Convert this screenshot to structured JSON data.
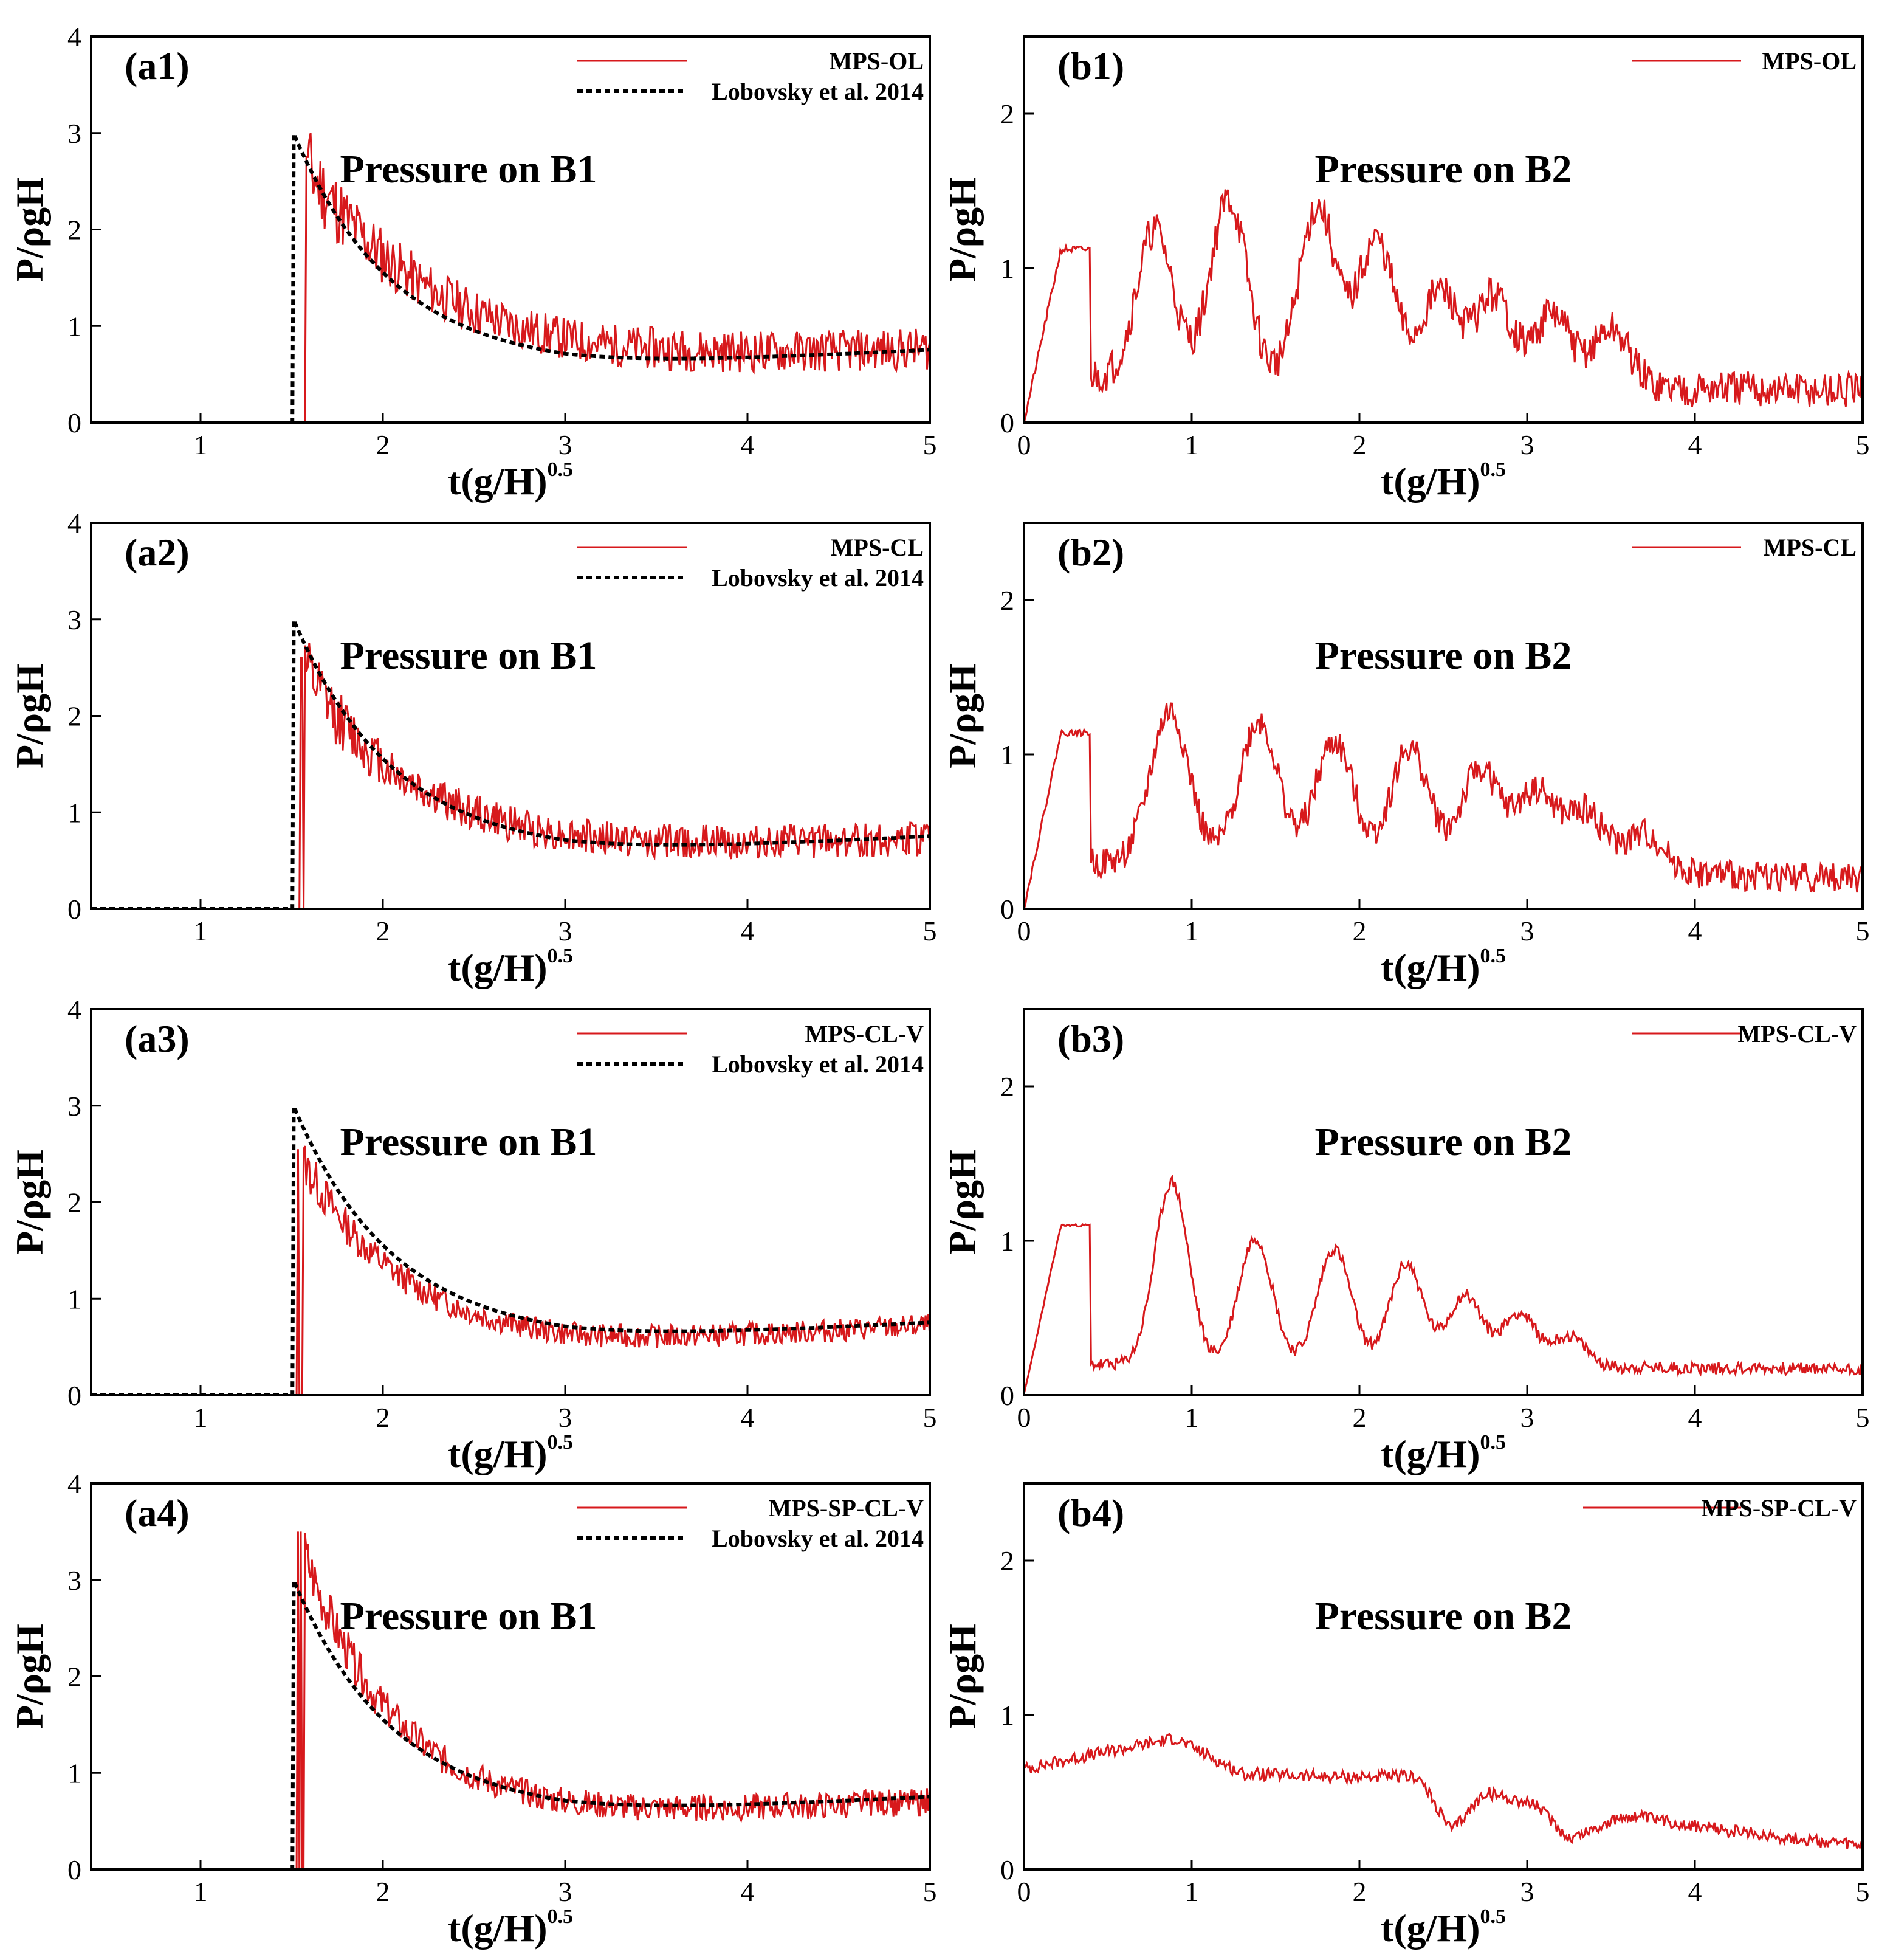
{
  "colors": {
    "sim": "#d7191c",
    "exp": "#000000",
    "axis": "#000000"
  },
  "chart_data": [
    {
      "id": "a1",
      "type": "line",
      "panel_label": "(a1)",
      "annotation": "Pressure on B1",
      "xlabel_main": "t(g/H)",
      "xlabel_sup": "0.5",
      "ylabel": "P/ρgH",
      "xlim": [
        0.4,
        5
      ],
      "ylim": [
        0,
        4
      ],
      "xticks": [
        1,
        2,
        3,
        4,
        5
      ],
      "yticks": [
        0,
        1,
        2,
        3,
        4
      ],
      "series": [
        {
          "name": "MPS-OL",
          "kind": "sim",
          "impact": 1.55,
          "peak": 2.75,
          "decay": 0.7,
          "base_start": 0.6,
          "base_end": 0.75,
          "noise": 0.22,
          "seed": 11
        },
        {
          "name": "Lobovsky et al. 2014",
          "kind": "exp",
          "impact": 1.51,
          "peak": 3.0,
          "decay": 0.55,
          "base_start": 0.55,
          "base_end": 0.75
        }
      ]
    },
    {
      "id": "b1",
      "type": "line",
      "panel_label": "(b1)",
      "annotation": "Pressure on B2",
      "xlabel_main": "t(g/H)",
      "xlabel_sup": "0.5",
      "ylabel": "P/ρgH",
      "xlim": [
        0,
        5
      ],
      "ylim": [
        0,
        2.5
      ],
      "xticks": [
        0,
        1,
        2,
        3,
        4,
        5
      ],
      "yticks": [
        0,
        1,
        2
      ],
      "series": [
        {
          "name": "MPS-OL",
          "kind": "sim",
          "first_peak": 1.12,
          "peak_times": [
            0.78,
            1.22,
            1.75,
            2.1,
            2.48,
            2.8,
            3.15,
            3.5
          ],
          "peak_heights": [
            1.25,
            1.45,
            1.4,
            1.18,
            0.85,
            0.82,
            0.7,
            0.6
          ],
          "width": 0.14,
          "base": 0.3,
          "tail": 0.2,
          "noise": 0.12,
          "seed": 21
        }
      ]
    },
    {
      "id": "a2",
      "type": "line",
      "panel_label": "(a2)",
      "annotation": "Pressure on B1",
      "xlabel_main": "t(g/H)",
      "xlabel_sup": "0.5",
      "ylabel": "P/ρgH",
      "xlim": [
        0.4,
        5
      ],
      "ylim": [
        0,
        4
      ],
      "xticks": [
        1,
        2,
        3,
        4,
        5
      ],
      "yticks": [
        0,
        1,
        2,
        3,
        4
      ],
      "series": [
        {
          "name": "MPS-CL",
          "kind": "sim",
          "impact": 1.53,
          "peak": 2.6,
          "decay": 0.6,
          "base_start": 0.6,
          "base_end": 0.72,
          "noise": 0.18,
          "seed": 12
        },
        {
          "name": "Lobovsky et al. 2014",
          "kind": "exp",
          "impact": 1.51,
          "peak": 3.0,
          "decay": 0.55,
          "base_start": 0.55,
          "base_end": 0.75
        }
      ]
    },
    {
      "id": "b2",
      "type": "line",
      "panel_label": "(b2)",
      "annotation": "Pressure on B2",
      "xlabel_main": "t(g/H)",
      "xlabel_sup": "0.5",
      "ylabel": "P/ρgH",
      "xlim": [
        0,
        5
      ],
      "ylim": [
        0,
        2.5
      ],
      "xticks": [
        0,
        1,
        2,
        3,
        4,
        5
      ],
      "yticks": [
        0,
        1,
        2
      ],
      "series": [
        {
          "name": "MPS-CL",
          "kind": "sim",
          "first_peak": 1.14,
          "peak_times": [
            0.87,
            1.4,
            1.85,
            2.3,
            2.72,
            3.05,
            3.35,
            3.7
          ],
          "peak_heights": [
            1.28,
            1.22,
            1.08,
            1.04,
            0.9,
            0.75,
            0.62,
            0.48
          ],
          "width": 0.15,
          "base": 0.3,
          "tail": 0.2,
          "noise": 0.1,
          "seed": 22
        }
      ]
    },
    {
      "id": "a3",
      "type": "line",
      "panel_label": "(a3)",
      "annotation": "Pressure on B1",
      "xlabel_main": "t(g/H)",
      "xlabel_sup": "0.5",
      "ylabel": "P/ρgH",
      "xlim": [
        0.4,
        5
      ],
      "ylim": [
        0,
        4
      ],
      "xticks": [
        1,
        2,
        3,
        4,
        5
      ],
      "yticks": [
        0,
        1,
        2,
        3,
        4
      ],
      "series": [
        {
          "name": "MPS-CL-V",
          "kind": "sim",
          "impact": 1.53,
          "peak": 2.55,
          "decay": 0.55,
          "base_start": 0.5,
          "base_end": 0.72,
          "noise": 0.12,
          "seed": 13
        },
        {
          "name": "Lobovsky et al. 2014",
          "kind": "exp",
          "impact": 1.51,
          "peak": 3.0,
          "decay": 0.55,
          "base_start": 0.55,
          "base_end": 0.75
        }
      ]
    },
    {
      "id": "b3",
      "type": "line",
      "panel_label": "(b3)",
      "annotation": "Pressure on B2",
      "xlabel_main": "t(g/H)",
      "xlabel_sup": "0.5",
      "ylabel": "P/ρgH",
      "xlim": [
        0,
        5
      ],
      "ylim": [
        0,
        2.5
      ],
      "xticks": [
        0,
        1,
        2,
        3,
        4,
        5
      ],
      "yticks": [
        0,
        1,
        2
      ],
      "series": [
        {
          "name": "MPS-CL-V",
          "kind": "sim",
          "first_peak": 1.1,
          "peak_times": [
            0.88,
            1.38,
            1.85,
            2.28,
            2.63,
            2.95,
            3.25
          ],
          "peak_heights": [
            1.38,
            1.02,
            0.95,
            0.85,
            0.65,
            0.53,
            0.38
          ],
          "width": 0.13,
          "base": 0.2,
          "tail": 0.17,
          "noise": 0.04,
          "seed": 23
        }
      ]
    },
    {
      "id": "a4",
      "type": "line",
      "panel_label": "(a4)",
      "annotation": "Pressure on B1",
      "xlabel_main": "t(g/H)",
      "xlabel_sup": "0.5",
      "ylabel": "P/ρgH",
      "xlim": [
        0.4,
        5
      ],
      "ylim": [
        0,
        4
      ],
      "xticks": [
        1,
        2,
        3,
        4,
        5
      ],
      "yticks": [
        0,
        1,
        2,
        3,
        4
      ],
      "series": [
        {
          "name": "MPS-SP-CL-V",
          "kind": "sim",
          "impact": 1.53,
          "peak": 3.5,
          "decay": 0.5,
          "base_start": 0.55,
          "base_end": 0.7,
          "noise": 0.14,
          "seed": 14
        },
        {
          "name": "Lobovsky et al. 2014",
          "kind": "exp",
          "impact": 1.51,
          "peak": 3.0,
          "decay": 0.55,
          "base_start": 0.55,
          "base_end": 0.75
        }
      ]
    },
    {
      "id": "b4",
      "type": "line",
      "panel_label": "(b4)",
      "annotation": "Pressure on B2",
      "xlabel_main": "t(g/H)",
      "xlabel_sup": "0.5",
      "ylabel": "P/ρgH",
      "xlim": [
        0,
        5
      ],
      "ylim": [
        0,
        2.5
      ],
      "xticks": [
        0,
        1,
        2,
        3,
        4,
        5
      ],
      "yticks": [
        0,
        1,
        2
      ],
      "series": [
        {
          "name": "MPS-SP-CL-V",
          "kind": "smooth",
          "points": [
            [
              0,
              0.65
            ],
            [
              0.3,
              0.72
            ],
            [
              0.9,
              0.85
            ],
            [
              1.3,
              0.62
            ],
            [
              1.8,
              0.6
            ],
            [
              2.35,
              0.6
            ],
            [
              2.55,
              0.25
            ],
            [
              2.75,
              0.5
            ],
            [
              3.05,
              0.42
            ],
            [
              3.25,
              0.2
            ],
            [
              3.6,
              0.35
            ],
            [
              4.2,
              0.25
            ],
            [
              5,
              0.15
            ]
          ],
          "noise": 0.04,
          "seed": 24
        }
      ]
    }
  ]
}
